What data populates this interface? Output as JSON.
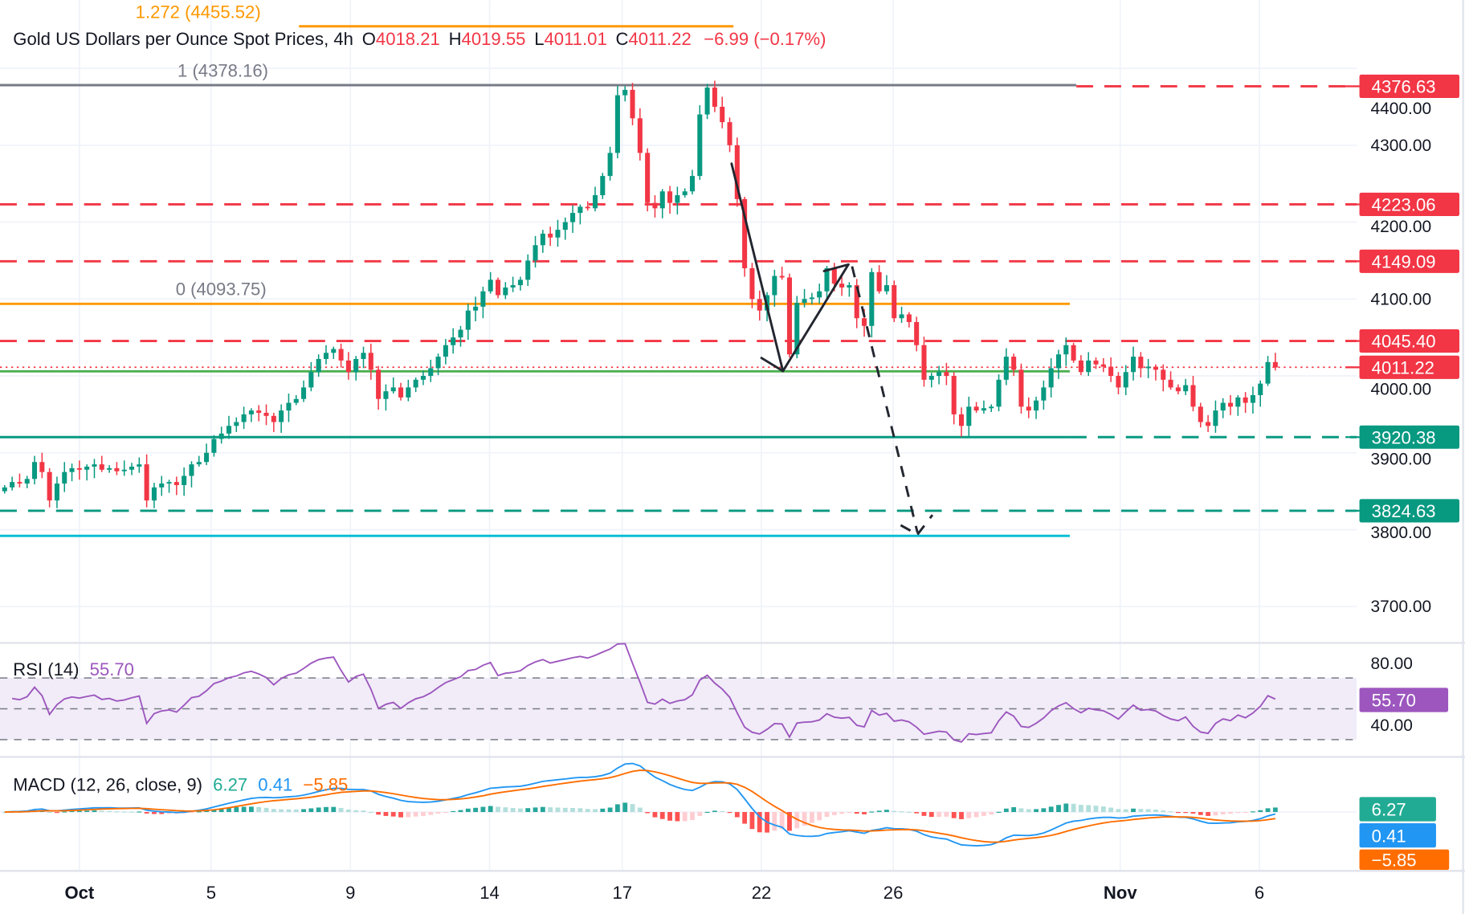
{
  "header": {
    "symbol_title": "Gold US Dollars per Ounce Spot Prices, 4h",
    "o_label": "O",
    "open": "4018.21",
    "h_label": "H",
    "high": "4019.55",
    "l_label": "L",
    "low": "4011.01",
    "c_label": "C",
    "close": "4011.22",
    "change": "−6.99 (−0.17%)"
  },
  "fib": {
    "level_1272": "1.272 (4455.52)",
    "level_1": "1 (4378.16)",
    "level_0": "0 (4093.75)"
  },
  "price_axis": {
    "ticks": [
      "4400.00",
      "4300.00",
      "4200.00",
      "4100.00",
      "4000.00",
      "3900.00",
      "3800.00",
      "3700.00"
    ],
    "badges": [
      {
        "label": "4376.63",
        "price": 4376.63,
        "color": "#F23645"
      },
      {
        "label": "4223.06",
        "price": 4223.06,
        "color": "#F23645"
      },
      {
        "label": "4149.09",
        "price": 4149.09,
        "color": "#F23645"
      },
      {
        "label": "4045.40",
        "price": 4045.4,
        "color": "#F23645"
      },
      {
        "label": "4011.22",
        "price": 4011.22,
        "color": "#F23645"
      },
      {
        "label": "3920.38",
        "price": 3920.38,
        "color": "#089981"
      },
      {
        "label": "3824.63",
        "price": 3824.63,
        "color": "#089981"
      }
    ]
  },
  "rsi": {
    "title": "RSI (14)",
    "value": "55.70",
    "color": "#9C56BE",
    "ticks": [
      "80.00",
      "40.00"
    ],
    "badge": "55.70"
  },
  "macd": {
    "title": "MACD (12, 26, close, 9)",
    "hist_value": "6.27",
    "macd_value": "0.41",
    "signal_value": "−5.85",
    "hist_badge": "6.27",
    "macd_badge": "0.41",
    "signal_badge": "−5.85",
    "colors": {
      "hist": "#22AB94",
      "macd": "#2196F3",
      "signal": "#FF6D00"
    }
  },
  "date_axis": {
    "labels": [
      "Oct",
      "5",
      "9",
      "14",
      "17",
      "22",
      "26",
      "Nov",
      "6"
    ]
  },
  "chart_data": {
    "type": "candlestick",
    "title": "Gold US Dollars per Ounce Spot Prices, 4h",
    "x_tick_labels": [
      "Oct",
      "5",
      "9",
      "14",
      "17",
      "22",
      "26",
      "Nov",
      "6"
    ],
    "y_ticks": [
      4400,
      4300,
      4200,
      4100,
      4000,
      3900,
      3800,
      3700
    ],
    "ylim": [
      3650,
      4470
    ],
    "grid": true,
    "colors": {
      "up": "#089981",
      "down": "#F23645"
    },
    "closes": [
      3855,
      3862,
      3860,
      3866,
      3888,
      3875,
      3838,
      3860,
      3875,
      3880,
      3878,
      3882,
      3885,
      3878,
      3880,
      3876,
      3878,
      3882,
      3885,
      3838,
      3855,
      3860,
      3862,
      3858,
      3870,
      3885,
      3888,
      3900,
      3918,
      3925,
      3935,
      3940,
      3950,
      3955,
      3952,
      3948,
      3940,
      3955,
      3965,
      3970,
      3985,
      4005,
      4022,
      4030,
      4035,
      4020,
      4005,
      4022,
      4030,
      4008,
      3970,
      3980,
      3985,
      3972,
      3985,
      3995,
      4000,
      4010,
      4025,
      4040,
      4050,
      4060,
      4085,
      4090,
      4110,
      4125,
      4105,
      4115,
      4118,
      4125,
      4150,
      4170,
      4185,
      4180,
      4190,
      4200,
      4212,
      4220,
      4218,
      4235,
      4260,
      4290,
      4365,
      4372,
      4335,
      4290,
      4225,
      4218,
      4240,
      4225,
      4235,
      4240,
      4260,
      4340,
      4375,
      4350,
      4330,
      4300,
      4230,
      4140,
      4100,
      4085,
      4105,
      4130,
      4128,
      4028,
      4095,
      4100,
      4102,
      4110,
      4140,
      4120,
      4115,
      4118,
      4075,
      4065,
      4135,
      4110,
      4118,
      4075,
      4080,
      4070,
      4040,
      3995,
      4000,
      4005,
      4000,
      3950,
      3935,
      3960,
      3955,
      3958,
      3960,
      3995,
      4025,
      4008,
      3960,
      3955,
      3968,
      3985,
      4010,
      4028,
      4040,
      4020,
      4005,
      4020,
      4015,
      4012,
      4000,
      3985,
      4005,
      4025,
      4010,
      4012,
      4008,
      3995,
      3985,
      3980,
      3988,
      3960,
      3940,
      3935,
      3955,
      3965,
      3960,
      3972,
      3965,
      3975,
      3990,
      4018,
      4011
    ],
    "horizontal_levels": [
      {
        "price": 4455.52,
        "style": "solid",
        "color": "#FF9800",
        "label": "1.272 (4455.52)"
      },
      {
        "price": 4378.16,
        "style": "solid",
        "color": "#787B86",
        "label": "1 (4378.16)"
      },
      {
        "price": 4376.63,
        "style": "dashed",
        "color": "#F23645"
      },
      {
        "price": 4223.06,
        "style": "dashed",
        "color": "#F23645"
      },
      {
        "price": 4149.09,
        "style": "dashed",
        "color": "#F23645"
      },
      {
        "price": 4093.75,
        "style": "solid",
        "color": "#FF9800",
        "label": "0 (4093.75)"
      },
      {
        "price": 4045.4,
        "style": "dashed",
        "color": "#F23645"
      },
      {
        "price": 4011.22,
        "style": "dotted",
        "color": "#F23645"
      },
      {
        "price": 4006,
        "style": "solid",
        "color": "#4CAF50"
      },
      {
        "price": 3920.38,
        "style": "solid",
        "color": "#089981"
      },
      {
        "price": 3824.63,
        "style": "dashed",
        "color": "#089981"
      },
      {
        "price": 3792,
        "style": "solid",
        "color": "#00BCD4"
      }
    ],
    "rsi_levels": [
      70,
      50,
      30
    ],
    "rsi_ylim": [
      20,
      93
    ]
  }
}
